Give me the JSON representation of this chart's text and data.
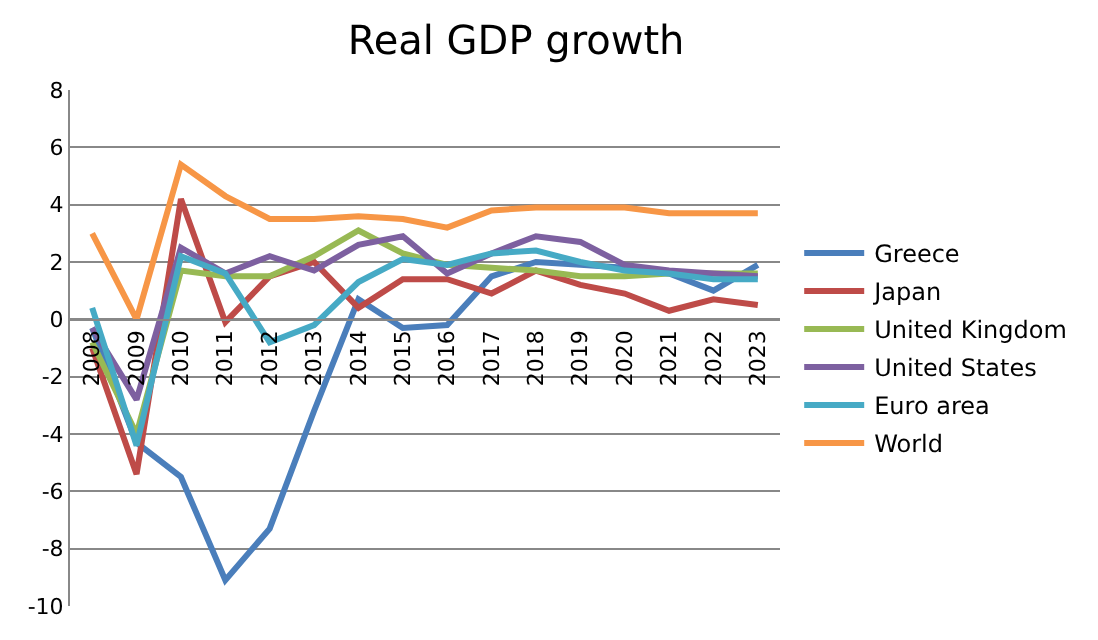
{
  "chart_data": {
    "type": "line",
    "title": "Real GDP growth",
    "categories": [
      "2008",
      "2009",
      "2010",
      "2011",
      "2012",
      "2013",
      "2014",
      "2015",
      "2016",
      "2017",
      "2018",
      "2019",
      "2020",
      "2021",
      "2022",
      "2023"
    ],
    "series": [
      {
        "name": "Greece",
        "color": "#4a7ebb",
        "values": [
          -0.3,
          -4.3,
          -5.5,
          -9.1,
          -7.3,
          -3.2,
          0.7,
          -0.3,
          -0.2,
          1.5,
          2.0,
          1.9,
          1.8,
          1.6,
          1.0,
          1.9
        ]
      },
      {
        "name": "Japan",
        "color": "#be4b48",
        "values": [
          -1.0,
          -5.4,
          4.2,
          -0.1,
          1.5,
          2.0,
          0.4,
          1.4,
          1.4,
          0.9,
          1.7,
          1.2,
          0.9,
          0.3,
          0.7,
          0.5
        ]
      },
      {
        "name": "United Kingdom",
        "color": "#98b954",
        "values": [
          -0.8,
          -4.0,
          1.7,
          1.5,
          1.5,
          2.2,
          3.1,
          2.3,
          1.9,
          1.8,
          1.7,
          1.5,
          1.5,
          1.6,
          1.6,
          1.6
        ]
      },
      {
        "name": "United States",
        "color": "#7d60a0",
        "values": [
          -0.3,
          -2.8,
          2.5,
          1.6,
          2.2,
          1.7,
          2.6,
          2.9,
          1.6,
          2.3,
          2.9,
          2.7,
          1.9,
          1.7,
          1.6,
          1.5
        ]
      },
      {
        "name": "Euro area",
        "color": "#46aac5",
        "values": [
          0.4,
          -4.4,
          2.2,
          1.6,
          -0.8,
          -0.2,
          1.3,
          2.1,
          1.9,
          2.3,
          2.4,
          2.0,
          1.7,
          1.6,
          1.4,
          1.4
        ]
      },
      {
        "name": "World",
        "color": "#f79646",
        "values": [
          3.0,
          0.0,
          5.4,
          4.3,
          3.5,
          3.5,
          3.6,
          3.5,
          3.2,
          3.8,
          3.9,
          3.9,
          3.9,
          3.7,
          3.7,
          3.7
        ]
      }
    ],
    "ylim": [
      -10,
      8
    ],
    "yticks": [
      -10,
      -8,
      -6,
      -4,
      -2,
      0,
      2,
      4,
      6,
      8
    ],
    "grid": "y",
    "legend": "right",
    "marker": "none",
    "line_style": "solid"
  }
}
